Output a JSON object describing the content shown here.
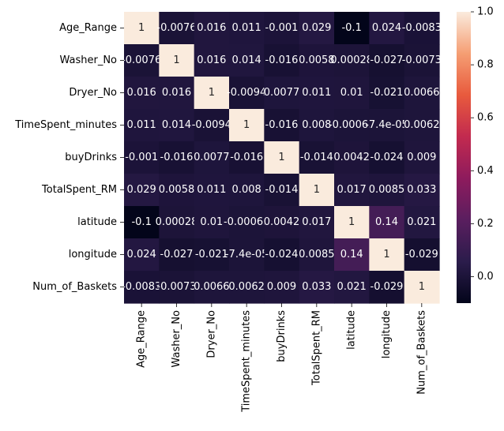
{
  "chart_data": {
    "type": "heatmap",
    "title": "",
    "xlabel": "",
    "ylabel": "",
    "rows": [
      "Age_Range",
      "Washer_No",
      "Dryer_No",
      "TimeSpent_minutes",
      "buyDrinks",
      "TotalSpent_RM",
      "latitude",
      "longitude",
      "Num_of_Baskets"
    ],
    "columns": [
      "Age_Range",
      "Washer_No",
      "Dryer_No",
      "TimeSpent_minutes",
      "buyDrinks",
      "TotalSpent_RM",
      "latitude",
      "longitude",
      "Num_of_Baskets"
    ],
    "values": [
      [
        1,
        -0.0076,
        0.016,
        0.011,
        -0.001,
        0.029,
        -0.1,
        0.024,
        -0.0083
      ],
      [
        -0.0076,
        1,
        0.016,
        0.014,
        -0.016,
        0.0058,
        0.00028,
        -0.027,
        -0.0073
      ],
      [
        0.016,
        0.016,
        1,
        -0.0094,
        0.0077,
        0.011,
        0.01,
        -0.021,
        0.0066
      ],
      [
        0.011,
        0.014,
        -0.0094,
        1,
        -0.016,
        0.008,
        -0.00065,
        -7.4e-05,
        0.0062
      ],
      [
        -0.001,
        -0.016,
        0.0077,
        -0.016,
        1,
        -0.014,
        0.0042,
        -0.024,
        0.009
      ],
      [
        0.029,
        0.0058,
        0.011,
        0.008,
        -0.014,
        1,
        0.017,
        0.0085,
        0.033
      ],
      [
        -0.1,
        0.00028,
        0.01,
        -0.00065,
        0.0042,
        0.017,
        1,
        0.14,
        0.021
      ],
      [
        0.024,
        -0.027,
        -0.021,
        -7.4e-05,
        -0.024,
        0.0085,
        0.14,
        1,
        -0.029
      ],
      [
        -0.0083,
        -0.0073,
        0.0066,
        0.0062,
        0.009,
        0.033,
        0.021,
        -0.029,
        1
      ]
    ],
    "cell_labels": [
      [
        "1",
        "-0.0076",
        "0.016",
        "0.011",
        "-0.001",
        "0.029",
        "-0.1",
        "0.024",
        "-0.0083"
      ],
      [
        "-0.0076",
        "1",
        "0.016",
        "0.014",
        "-0.016",
        "0.0058",
        "0.00028",
        "-0.027",
        "-0.0073"
      ],
      [
        "0.016",
        "0.016",
        "1",
        "-0.0094",
        "0.0077",
        "0.011",
        "0.01",
        "-0.021",
        "0.0066"
      ],
      [
        "0.011",
        "0.014",
        "-0.0094",
        "1",
        "-0.016",
        "0.008",
        "-0.00065",
        "-7.4e-05",
        "0.0062"
      ],
      [
        "-0.001",
        "-0.016",
        "0.0077",
        "-0.016",
        "1",
        "-0.014",
        "0.0042",
        "-0.024",
        "0.009"
      ],
      [
        "0.029",
        "0.0058",
        "0.011",
        "0.008",
        "-0.014",
        "1",
        "0.017",
        "0.0085",
        "0.033"
      ],
      [
        "-0.1",
        "0.00028",
        "0.01",
        "-0.00065",
        "0.0042",
        "0.017",
        "1",
        "0.14",
        "0.021"
      ],
      [
        "0.024",
        "-0.027",
        "-0.021",
        "-7.4e-05",
        "-0.024",
        "0.0085",
        "0.14",
        "1",
        "-0.029"
      ],
      [
        "-0.0083",
        "-0.0073",
        "0.0066",
        "0.0062",
        "0.009",
        "0.033",
        "0.021",
        "-0.029",
        "1"
      ]
    ],
    "colorbar": {
      "range": [
        -0.1,
        1.0
      ],
      "ticks": [
        0.0,
        0.2,
        0.4,
        0.6,
        0.8,
        1.0
      ],
      "tick_labels": [
        "0.0",
        "0.2",
        "0.4",
        "0.6",
        "0.8",
        "1.0"
      ],
      "colormap": "rocket",
      "colors": [
        "#03051a",
        "#2b1c4b",
        "#5a1e5f",
        "#8e1b5d",
        "#c22a4f",
        "#e85a3d",
        "#f59e73",
        "#faebdd"
      ]
    },
    "grid": false,
    "legend": "right"
  }
}
